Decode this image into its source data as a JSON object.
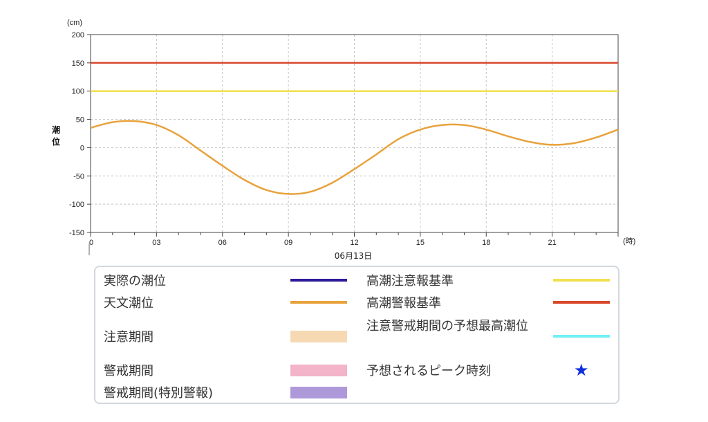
{
  "chart_data": {
    "type": "line",
    "ylabel": "潮位",
    "y_unit": "(cm)",
    "x_unit": "(時)",
    "date_label": "06月13日",
    "ylim": [
      -150,
      200
    ],
    "xlim": [
      0,
      24
    ],
    "yticks": [
      "200",
      "150",
      "100",
      "50",
      "0",
      "-50",
      "-100",
      "-150"
    ],
    "xticks": [
      "0",
      "03",
      "06",
      "09",
      "12",
      "15",
      "18",
      "21"
    ],
    "grid": true,
    "series": [
      {
        "name": "天文潮位",
        "color": "#e8a23c",
        "x": [
          0,
          1,
          2,
          3,
          4,
          5,
          6,
          7,
          8,
          9,
          10,
          11,
          12,
          13,
          14,
          15,
          16,
          17,
          18,
          19,
          20,
          21,
          22,
          23,
          24
        ],
        "y": [
          35,
          45,
          47,
          40,
          22,
          -5,
          -32,
          -57,
          -75,
          -82,
          -78,
          -62,
          -38,
          -12,
          15,
          32,
          40,
          40,
          32,
          20,
          10,
          5,
          8,
          18,
          32
        ]
      },
      {
        "name": "高潮注意報基準",
        "color": "#f0e050",
        "x": [
          0,
          24
        ],
        "y": [
          100,
          100
        ]
      },
      {
        "name": "高潮警報基準",
        "color": "#d9472b",
        "x": [
          0,
          24
        ],
        "y": [
          150,
          150
        ]
      }
    ]
  },
  "legend": {
    "left": [
      {
        "label": "実際の潮位",
        "kind": "line",
        "color": "#2b1a9a"
      },
      {
        "label": "天文潮位",
        "kind": "line",
        "color": "#e8a23c"
      },
      {
        "label": "注意期間",
        "kind": "box",
        "color": "#f6d9b3"
      },
      {
        "label": "警戒期間",
        "kind": "box",
        "color": "#f3b3c9"
      },
      {
        "label": "警戒期間(特別警報)",
        "kind": "box",
        "color": "#ad99d9"
      }
    ],
    "right": [
      {
        "label": "高潮注意報基準",
        "kind": "line",
        "color": "#f0e050"
      },
      {
        "label": "高潮警報基準",
        "kind": "line",
        "color": "#d9472b"
      },
      {
        "label": "注意警戒期間の予想最高潮位",
        "kind": "line",
        "color": "#70f0f5"
      },
      {
        "label": "予想されるピーク時刻",
        "kind": "star",
        "color": "#1030e0",
        "symbol": "★"
      }
    ]
  }
}
